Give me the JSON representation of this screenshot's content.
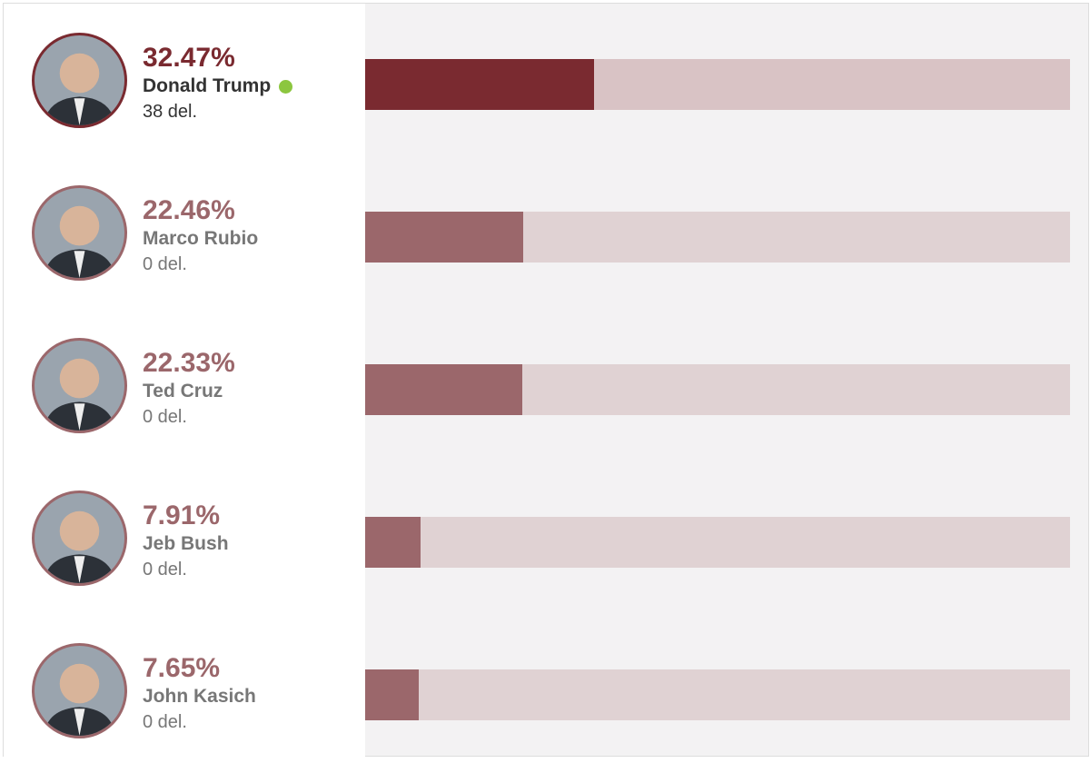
{
  "chart_data": {
    "type": "bar",
    "orientation": "horizontal",
    "xlim": [
      0,
      100
    ],
    "colors": {
      "winner_bar": "#7a2a30",
      "winner_track": "#d9c3c5",
      "bar": "#9b676b",
      "track": "#e0d2d3",
      "winner_dot": "#8cc63f"
    },
    "candidates": [
      {
        "name": "Donald Trump",
        "pct_label": "32.47%",
        "value": 32.47,
        "delegates": "38 del.",
        "winner": true
      },
      {
        "name": "Marco Rubio",
        "pct_label": "22.46%",
        "value": 22.46,
        "delegates": "0 del.",
        "winner": false
      },
      {
        "name": "Ted Cruz",
        "pct_label": "22.33%",
        "value": 22.33,
        "delegates": "0 del.",
        "winner": false
      },
      {
        "name": "Jeb Bush",
        "pct_label": "7.91%",
        "value": 7.91,
        "delegates": "0 del.",
        "winner": false
      },
      {
        "name": "John Kasich",
        "pct_label": "7.65%",
        "value": 7.65,
        "delegates": "0 del.",
        "winner": false
      }
    ]
  }
}
